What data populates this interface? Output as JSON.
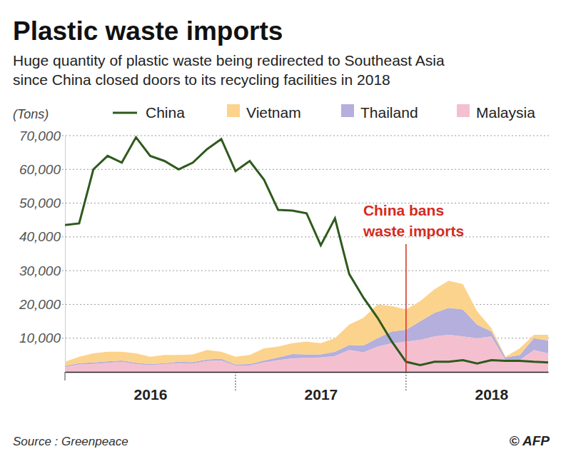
{
  "chart_data": {
    "type": "line",
    "title": "Plastic waste imports",
    "subtitle": [
      "Huge quantity of plastic waste being redirected to Southeast Asia",
      "since China closed doors to its recycling facilities in 2018"
    ],
    "y_label": "(Tons)",
    "source": "Source : Greenpeace",
    "credit": "© AFP",
    "categories": [
      null,
      null,
      null,
      null,
      null,
      null,
      "2016",
      null,
      null,
      null,
      null,
      null,
      null,
      null,
      null,
      null,
      null,
      null,
      "2017",
      null,
      null,
      null,
      null,
      null,
      null,
      null,
      null,
      null,
      null,
      null,
      "2018",
      null,
      null,
      null,
      null
    ],
    "stacked": true,
    "grid": true,
    "legend": "top",
    "ylim": [
      0,
      70000
    ],
    "yticks": [
      {
        "value": 10000,
        "label": "10,000"
      },
      {
        "value": 20000,
        "label": "20,000"
      },
      {
        "value": 30000,
        "label": "30,000"
      },
      {
        "value": 40000,
        "label": "40,000"
      },
      {
        "value": 50000,
        "label": "50,000"
      },
      {
        "value": 60000,
        "label": "60,000"
      },
      {
        "value": 70000,
        "label": "70,000"
      }
    ],
    "annotations": [
      {
        "lines": [
          "China bans",
          "waste imports"
        ],
        "x": 24,
        "color": "#d52b1e"
      }
    ],
    "series": [
      {
        "name": "China",
        "type": "line",
        "color": "#2e5a1c",
        "values": [
          43500,
          44000,
          60000,
          64000,
          62000,
          69500,
          64000,
          62500,
          60000,
          62000,
          66000,
          69000,
          59500,
          62500,
          57000,
          48000,
          47800,
          47000,
          37500,
          45500,
          29000,
          22000,
          16000,
          9000,
          3000,
          2000,
          3000,
          3000,
          3500,
          2500,
          3500,
          3300,
          3300,
          3000,
          2800
        ]
      },
      {
        "name": "Vietnam",
        "type": "area",
        "color": "#fcd38c",
        "values": [
          1200,
          1900,
          2700,
          2900,
          2600,
          2800,
          2200,
          2400,
          2000,
          2300,
          2800,
          2100,
          2300,
          2700,
          3600,
          3200,
          3200,
          3800,
          3300,
          4000,
          6000,
          8200,
          10000,
          7500,
          6000,
          6000,
          7000,
          8000,
          7500,
          4000,
          1000,
          200,
          2000,
          1000,
          1700
        ]
      },
      {
        "name": "Thailand",
        "type": "area",
        "color": "#b4afdc",
        "values": [
          300,
          400,
          400,
          400,
          400,
          400,
          300,
          300,
          400,
          400,
          500,
          500,
          300,
          400,
          600,
          800,
          1300,
          1000,
          900,
          1300,
          1500,
          2000,
          2500,
          3500,
          3500,
          5500,
          7000,
          8000,
          8000,
          4000,
          1500,
          800,
          1500,
          3500,
          3800
        ]
      },
      {
        "name": "Malaysia",
        "type": "area",
        "color": "#f4c0d0",
        "values": [
          1500,
          2200,
          2400,
          2700,
          3000,
          2300,
          2000,
          2300,
          2600,
          2500,
          3200,
          3400,
          1900,
          1900,
          2800,
          3500,
          4000,
          4200,
          4300,
          4700,
          6500,
          5800,
          7500,
          8500,
          9000,
          9500,
          10500,
          11000,
          10500,
          10000,
          10500,
          3500,
          3500,
          6500,
          5500
        ]
      }
    ]
  }
}
